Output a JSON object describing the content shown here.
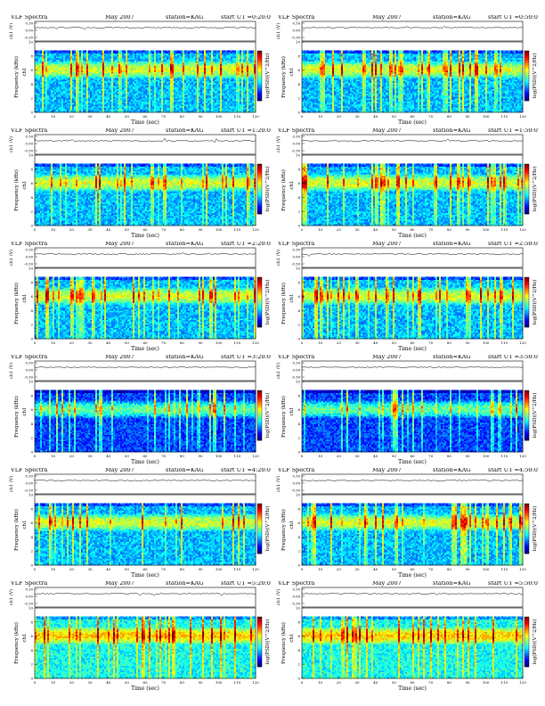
{
  "page": {
    "title": "VLF Spectra",
    "date": "May 2007",
    "station": "station=KAG"
  },
  "axes": {
    "time_label": "Time (sec)",
    "freq_label": "Frequency (kHz)",
    "ch_label": "ch1 (V)",
    "colorbar_label": "log(PSD)(V^2/Hz)",
    "time_ticks": [
      "0",
      "10",
      "20",
      "30",
      "40",
      "50",
      "60",
      "70",
      "80",
      "90",
      "100",
      "110",
      "120"
    ],
    "freq_ticks": [
      "0",
      "2",
      "4",
      "6",
      "8",
      "10"
    ],
    "ch_ticks": [
      "0.30",
      "0.00",
      "-0.30"
    ]
  },
  "chart_data": [
    {
      "type": "heatmap",
      "title": "VLF Spectra",
      "start_ut": "start UT =0:20:0",
      "xlabel": "Time (sec)",
      "ylabel": "Frequency (kHz)",
      "xlim": [
        0,
        120
      ],
      "ylim": [
        0,
        10
      ],
      "intensity_level": "moderate"
    },
    {
      "type": "heatmap",
      "title": "VLF Spectra",
      "start_ut": "start UT =0:50:0",
      "xlabel": "Time (sec)",
      "ylabel": "Frequency (kHz)",
      "xlim": [
        0,
        120
      ],
      "ylim": [
        0,
        10
      ],
      "intensity_level": "moderate"
    },
    {
      "type": "heatmap",
      "title": "VLF Spectra",
      "start_ut": "start UT =1:20:0",
      "xlabel": "Time (sec)",
      "ylabel": "Frequency (kHz)",
      "xlim": [
        0,
        120
      ],
      "ylim": [
        0,
        10
      ],
      "intensity_level": "moderate"
    },
    {
      "type": "heatmap",
      "title": "VLF Spectra",
      "start_ut": "start UT =1:50:0",
      "xlabel": "Time (sec)",
      "ylabel": "Frequency (kHz)",
      "xlim": [
        0,
        120
      ],
      "ylim": [
        0,
        10
      ],
      "intensity_level": "moderate"
    },
    {
      "type": "heatmap",
      "title": "VLF Spectra",
      "start_ut": "start UT =2:20:0",
      "xlabel": "Time (sec)",
      "ylabel": "Frequency (kHz)",
      "xlim": [
        0,
        120
      ],
      "ylim": [
        0,
        10
      ],
      "intensity_level": "moderate"
    },
    {
      "type": "heatmap",
      "title": "VLF Spectra",
      "start_ut": "start UT =2:50:0",
      "xlabel": "Time (sec)",
      "ylabel": "Frequency (kHz)",
      "xlim": [
        0,
        120
      ],
      "ylim": [
        0,
        10
      ],
      "intensity_level": "moderate"
    },
    {
      "type": "heatmap",
      "title": "VLF Spectra",
      "start_ut": "start UT =3:20:0",
      "xlabel": "Time (sec)",
      "ylabel": "Frequency (kHz)",
      "xlim": [
        0,
        120
      ],
      "ylim": [
        0,
        10
      ],
      "intensity_level": "low"
    },
    {
      "type": "heatmap",
      "title": "VLF Spectra",
      "start_ut": "start UT =3:50:0",
      "xlabel": "Time (sec)",
      "ylabel": "Frequency (kHz)",
      "xlim": [
        0,
        120
      ],
      "ylim": [
        0,
        10
      ],
      "intensity_level": "low"
    },
    {
      "type": "heatmap",
      "title": "VLF Spectra",
      "start_ut": "start UT =4:20:0",
      "xlabel": "Time (sec)",
      "ylabel": "Frequency (kHz)",
      "xlim": [
        0,
        120
      ],
      "ylim": [
        0,
        10
      ],
      "intensity_level": "moderate"
    },
    {
      "type": "heatmap",
      "title": "VLF Spectra",
      "start_ut": "start UT =4:50:0",
      "xlabel": "Time (sec)",
      "ylabel": "Frequency (kHz)",
      "xlim": [
        0,
        120
      ],
      "ylim": [
        0,
        10
      ],
      "intensity_level": "moderate"
    },
    {
      "type": "heatmap",
      "title": "VLF Spectra",
      "start_ut": "start UT =5:20:0",
      "xlabel": "Time (sec)",
      "ylabel": "Frequency (kHz)",
      "xlim": [
        0,
        120
      ],
      "ylim": [
        0,
        10
      ],
      "intensity_level": "high"
    },
    {
      "type": "heatmap",
      "title": "VLF Spectra",
      "start_ut": "start UT =5:50:0",
      "xlabel": "Time (sec)",
      "ylabel": "Frequency (kHz)",
      "xlim": [
        0,
        120
      ],
      "ylim": [
        0,
        10
      ],
      "intensity_level": "high"
    }
  ],
  "colors": {
    "low": "#0000a0",
    "mid": "#00d0ff",
    "high": "#ff2000",
    "peak": "#ffff40"
  }
}
